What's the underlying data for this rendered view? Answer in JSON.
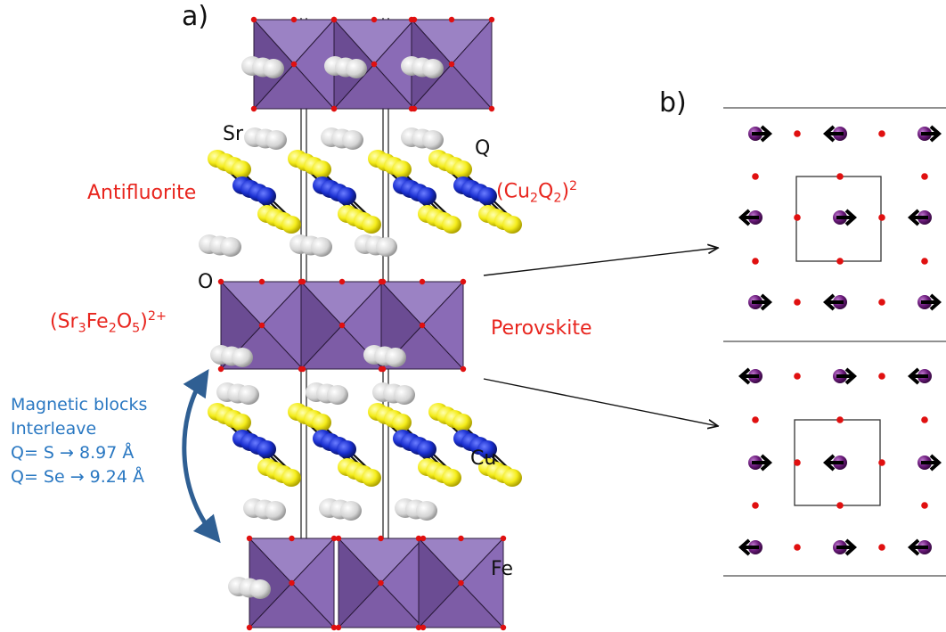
{
  "panels": {
    "a": "a)",
    "b": "b)"
  },
  "atoms": {
    "sr": "Sr",
    "q": "Q",
    "o": "O",
    "cu": "Cu",
    "fe": "Fe"
  },
  "blocks": {
    "antifluorite": "Antifluorite",
    "cu2q2": {
      "p1": "(Cu",
      "s1": "2",
      "p2": "Q",
      "s2": "2",
      "p3": ")",
      "sup": "2"
    },
    "perovskite": "Perovskite",
    "sr3fe2o5": {
      "p1": "(Sr",
      "s1": "3",
      "p2": "Fe",
      "s2": "2",
      "p3": "O",
      "s3": "5",
      "p4": ")",
      "sup": "2+"
    }
  },
  "notes": {
    "line1": "Magnetic blocks",
    "line2": "Interleave",
    "line3": "Q= S → 8.97 Å",
    "line4": "Q= Se → 9.24 Å"
  },
  "colors": {
    "octahedron": "#7d5ca6",
    "octahedron_light": "#9b82c4",
    "oxygen": "#e01010",
    "strontium": "#d8d8d8",
    "sulfur": "#f4ec1a",
    "copper": "#1a2fd0",
    "iron": "#6a1a7a",
    "annotation_red": "#e8251e",
    "annotation_blue": "#2a78c2"
  }
}
